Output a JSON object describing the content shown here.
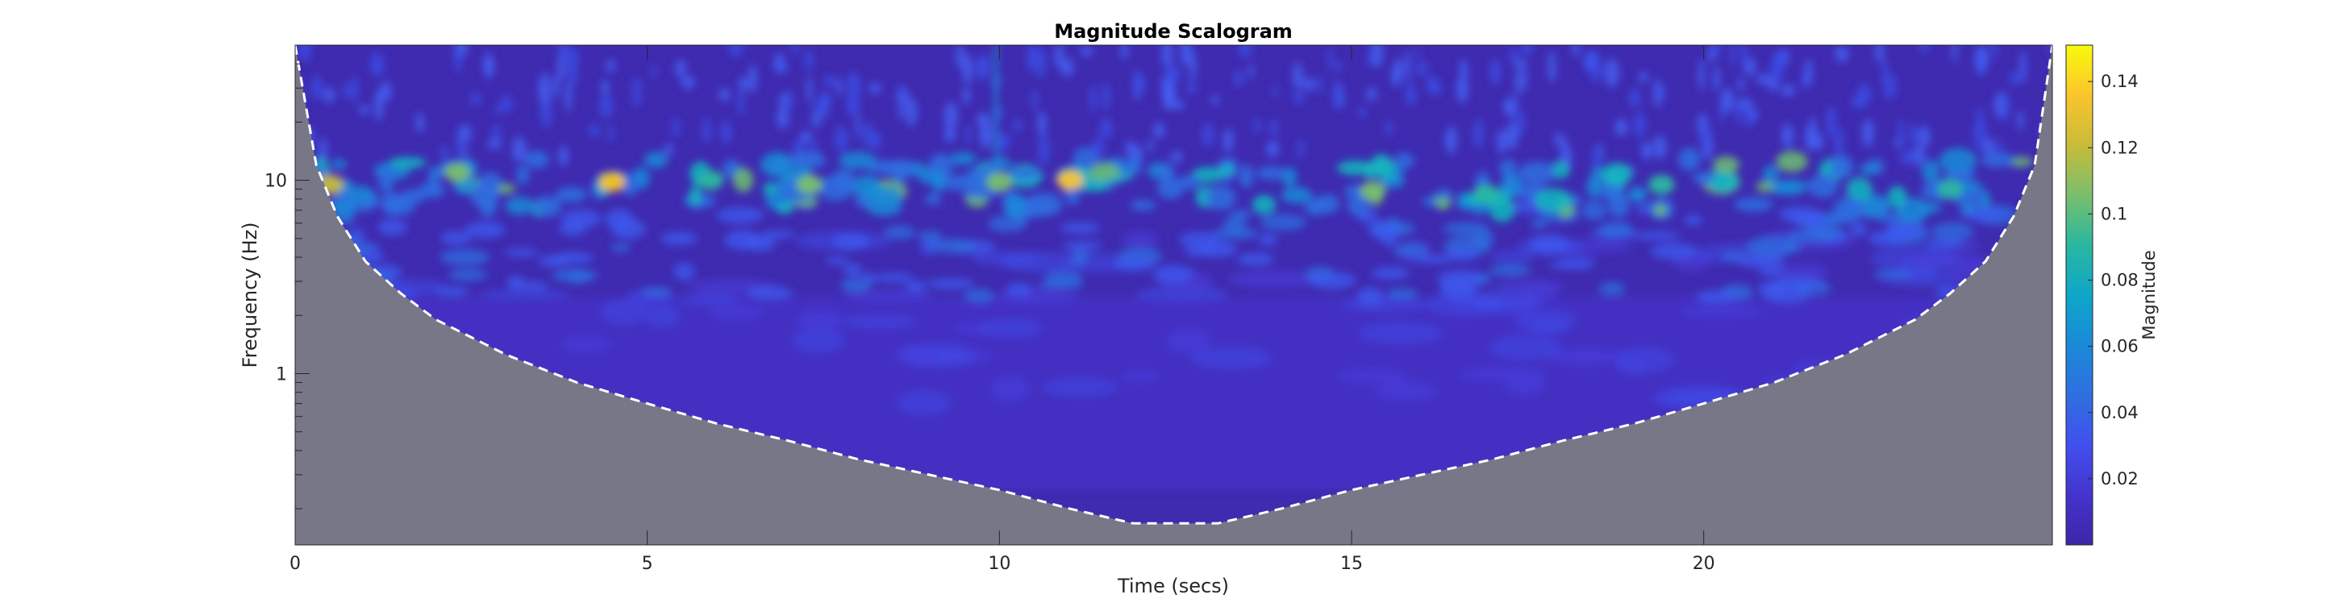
{
  "chart_data": {
    "type": "heatmap",
    "title": "Magnitude Scalogram",
    "xlabel": "Time (secs)",
    "ylabel": "Frequency (Hz)",
    "x_ticks": [
      0,
      5,
      10,
      15,
      20
    ],
    "x_tick_labels": [
      "0",
      "5",
      "10",
      "15",
      "20"
    ],
    "xlim": [
      0,
      24.95
    ],
    "y_scale": "log",
    "y_ticks": [
      1,
      10
    ],
    "y_tick_labels": [
      "1",
      "10"
    ],
    "ylim": [
      0.13,
      50
    ],
    "colorbar": {
      "label": "Magnitude",
      "ticks": [
        0.02,
        0.04,
        0.06,
        0.08,
        0.1,
        0.12,
        0.14
      ],
      "tick_labels": [
        "0.02",
        "0.04",
        "0.06",
        "0.08",
        "0.1",
        "0.12",
        "0.14"
      ],
      "range": [
        0,
        0.151
      ],
      "colormap": "parula"
    },
    "cone_of_influence": {
      "style": "white dashed",
      "t": [
        0,
        0.3,
        0.6,
        1.0,
        1.5,
        2.0,
        3.0,
        4.0,
        5.0,
        6.0,
        7.0,
        8.0,
        9.0,
        10.0,
        11.0,
        11.9,
        13.1,
        14.0,
        15.0,
        16.0,
        17.0,
        18.0,
        19.0,
        20.0,
        21.0,
        22.0,
        23.0,
        23.5,
        24.0,
        24.4,
        24.7,
        24.95
      ],
      "f": [
        50,
        12,
        6.5,
        3.8,
        2.6,
        1.9,
        1.25,
        0.9,
        0.7,
        0.55,
        0.45,
        0.36,
        0.3,
        0.25,
        0.2,
        0.168,
        0.168,
        0.2,
        0.25,
        0.3,
        0.36,
        0.45,
        0.55,
        0.7,
        0.9,
        1.25,
        1.9,
        2.6,
        3.8,
        6.5,
        12,
        50
      ]
    },
    "grid": false
  },
  "colors": {
    "low": "#3e26a8",
    "mid": "#2f6fe0",
    "teal": "#13b9bf",
    "high": "#f8fa0d",
    "coi_shade": "#777788",
    "coi_line": "#ffffff"
  }
}
